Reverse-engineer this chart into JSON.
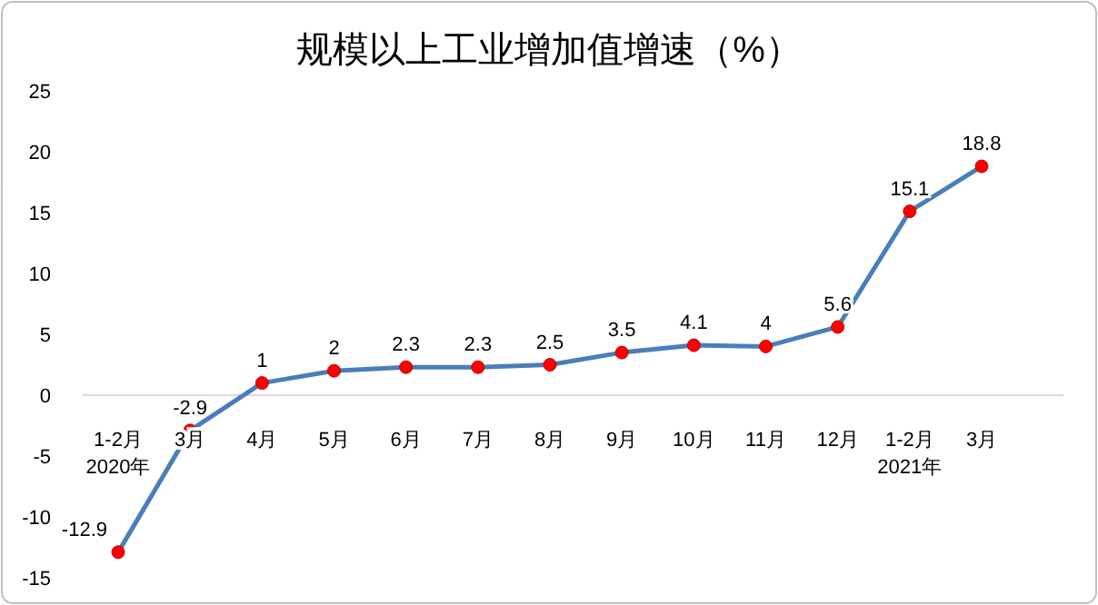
{
  "chart_data": {
    "type": "line",
    "title": "规模以上工业增加值增速（%）",
    "categories": [
      "1-2月\n2020年",
      "3月",
      "4月",
      "5月",
      "6月",
      "7月",
      "8月",
      "9月",
      "10月",
      "11月",
      "12月",
      "1-2月\n2021年",
      "3月"
    ],
    "series": [
      {
        "color": "#4a7ebb",
        "values": [
          -12.9,
          -2.9,
          1,
          2,
          2.3,
          2.3,
          2.5,
          3.5,
          4.1,
          4,
          5.6,
          15.1,
          18.8
        ]
      }
    ],
    "ylim": [
      -15,
      25
    ],
    "yticks": [
      -15,
      -10,
      -5,
      0,
      5,
      10,
      15,
      20,
      25
    ],
    "marker": "circle",
    "data_labels": true,
    "grid": false,
    "line_style": "solid"
  }
}
